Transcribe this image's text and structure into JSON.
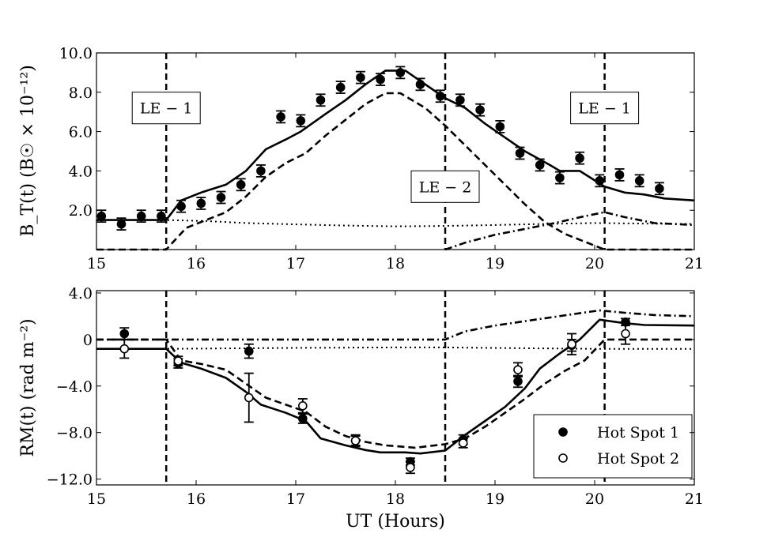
{
  "chart_data": [
    {
      "type": "line",
      "panel": "top",
      "ylabel": "B_T(t) (B☉ × 10⁻¹²)",
      "xlim": [
        15,
        21
      ],
      "ylim": [
        0,
        10
      ],
      "xticks": [
        "15",
        "16",
        "17",
        "18",
        "19",
        "20",
        "21"
      ],
      "yticks": [
        {
          "v": 2,
          "label": "2.0"
        },
        {
          "v": 4,
          "label": "4.0"
        },
        {
          "v": 6,
          "label": "6.0"
        },
        {
          "v": 8,
          "label": "8.0"
        },
        {
          "v": 10,
          "label": "10.0"
        }
      ],
      "vlines": [
        15.7,
        18.5,
        20.1
      ],
      "annotations": [
        {
          "text": "LE − 1",
          "x": 15.7,
          "y": 7.2
        },
        {
          "text": "LE − 2",
          "x": 18.5,
          "y": 3.2
        },
        {
          "text": "LE − 1",
          "x": 20.1,
          "y": 7.2
        }
      ],
      "series": [
        {
          "style": "solid",
          "points": [
            [
              15.0,
              1.5
            ],
            [
              15.7,
              1.5
            ],
            [
              15.85,
              2.5
            ],
            [
              16.05,
              2.9
            ],
            [
              16.3,
              3.3
            ],
            [
              16.5,
              4.0
            ],
            [
              16.7,
              5.1
            ],
            [
              16.9,
              5.6
            ],
            [
              17.05,
              6.0
            ],
            [
              17.3,
              6.9
            ],
            [
              17.5,
              7.6
            ],
            [
              17.7,
              8.4
            ],
            [
              17.9,
              9.1
            ],
            [
              18.1,
              9.1
            ],
            [
              18.3,
              8.4
            ],
            [
              18.5,
              7.7
            ],
            [
              18.7,
              7.2
            ],
            [
              18.9,
              6.4
            ],
            [
              19.1,
              5.7
            ],
            [
              19.3,
              5.0
            ],
            [
              19.55,
              4.3
            ],
            [
              19.65,
              4.0
            ],
            [
              19.85,
              4.0
            ],
            [
              20.1,
              3.2
            ],
            [
              20.3,
              2.9
            ],
            [
              20.5,
              2.8
            ],
            [
              20.7,
              2.6
            ],
            [
              21.0,
              2.5
            ]
          ]
        },
        {
          "style": "dashed",
          "points": [
            [
              15.0,
              0.0
            ],
            [
              15.7,
              0.0
            ],
            [
              15.9,
              1.1
            ],
            [
              16.1,
              1.5
            ],
            [
              16.3,
              1.9
            ],
            [
              16.5,
              2.7
            ],
            [
              16.7,
              3.7
            ],
            [
              16.9,
              4.4
            ],
            [
              17.1,
              4.9
            ],
            [
              17.3,
              5.8
            ],
            [
              17.5,
              6.6
            ],
            [
              17.7,
              7.4
            ],
            [
              17.9,
              7.95
            ],
            [
              18.05,
              7.95
            ],
            [
              18.3,
              7.2
            ],
            [
              18.5,
              6.3
            ],
            [
              18.7,
              5.3
            ],
            [
              18.9,
              4.3
            ],
            [
              19.1,
              3.3
            ],
            [
              19.3,
              2.3
            ],
            [
              19.5,
              1.4
            ],
            [
              19.7,
              0.8
            ],
            [
              19.9,
              0.4
            ],
            [
              20.1,
              0.0
            ],
            [
              21.0,
              0.0
            ]
          ]
        },
        {
          "style": "dotted",
          "points": [
            [
              15.0,
              1.5
            ],
            [
              15.7,
              1.5
            ],
            [
              16.1,
              1.45
            ],
            [
              16.5,
              1.35
            ],
            [
              17.0,
              1.28
            ],
            [
              17.5,
              1.22
            ],
            [
              18.0,
              1.18
            ],
            [
              18.5,
              1.2
            ],
            [
              19.0,
              1.25
            ],
            [
              19.5,
              1.3
            ],
            [
              20.0,
              1.35
            ],
            [
              20.5,
              1.32
            ],
            [
              21.0,
              1.3
            ]
          ]
        },
        {
          "style": "dashdot",
          "points": [
            [
              18.5,
              0.0
            ],
            [
              18.7,
              0.35
            ],
            [
              19.0,
              0.75
            ],
            [
              19.3,
              1.05
            ],
            [
              19.6,
              1.35
            ],
            [
              19.9,
              1.7
            ],
            [
              20.1,
              1.9
            ],
            [
              20.3,
              1.65
            ],
            [
              20.6,
              1.35
            ],
            [
              21.0,
              1.25
            ]
          ]
        }
      ],
      "markers": [
        {
          "name": "Hot Spot 1",
          "fill": "filled",
          "points": [
            {
              "x": 15.05,
              "y": 1.7,
              "err": 0.3
            },
            {
              "x": 15.25,
              "y": 1.3,
              "err": 0.3
            },
            {
              "x": 15.45,
              "y": 1.7,
              "err": 0.3
            },
            {
              "x": 15.65,
              "y": 1.7,
              "err": 0.3
            },
            {
              "x": 15.85,
              "y": 2.2,
              "err": 0.3
            },
            {
              "x": 16.05,
              "y": 2.35,
              "err": 0.3
            },
            {
              "x": 16.25,
              "y": 2.65,
              "err": 0.3
            },
            {
              "x": 16.45,
              "y": 3.3,
              "err": 0.3
            },
            {
              "x": 16.65,
              "y": 4.0,
              "err": 0.3
            },
            {
              "x": 16.85,
              "y": 6.75,
              "err": 0.3
            },
            {
              "x": 17.05,
              "y": 6.55,
              "err": 0.3
            },
            {
              "x": 17.25,
              "y": 7.6,
              "err": 0.3
            },
            {
              "x": 17.45,
              "y": 8.25,
              "err": 0.3
            },
            {
              "x": 17.65,
              "y": 8.75,
              "err": 0.3
            },
            {
              "x": 17.85,
              "y": 8.65,
              "err": 0.3
            },
            {
              "x": 18.05,
              "y": 9.0,
              "err": 0.3
            },
            {
              "x": 18.25,
              "y": 8.4,
              "err": 0.3
            },
            {
              "x": 18.45,
              "y": 7.8,
              "err": 0.3
            },
            {
              "x": 18.65,
              "y": 7.6,
              "err": 0.3
            },
            {
              "x": 18.85,
              "y": 7.1,
              "err": 0.3
            },
            {
              "x": 19.05,
              "y": 6.25,
              "err": 0.3
            },
            {
              "x": 19.25,
              "y": 4.9,
              "err": 0.3
            },
            {
              "x": 19.45,
              "y": 4.3,
              "err": 0.3
            },
            {
              "x": 19.65,
              "y": 3.65,
              "err": 0.3
            },
            {
              "x": 19.85,
              "y": 4.65,
              "err": 0.3
            },
            {
              "x": 20.05,
              "y": 3.5,
              "err": 0.3
            },
            {
              "x": 20.25,
              "y": 3.8,
              "err": 0.3
            },
            {
              "x": 20.45,
              "y": 3.5,
              "err": 0.3
            },
            {
              "x": 20.65,
              "y": 3.1,
              "err": 0.3
            }
          ]
        }
      ]
    },
    {
      "type": "line",
      "panel": "bottom",
      "xlabel": "UT (Hours)",
      "ylabel": "RM(t) (rad m⁻²)",
      "xlim": [
        15,
        21
      ],
      "ylim": [
        -12.5,
        4.2
      ],
      "xticks": [
        "15",
        "16",
        "17",
        "18",
        "19",
        "20",
        "21"
      ],
      "yticks": [
        {
          "v": 4,
          "label": "4.0"
        },
        {
          "v": 0,
          "label": "0"
        },
        {
          "v": -4,
          "label": "−4.0"
        },
        {
          "v": -8,
          "label": "−8.0"
        },
        {
          "v": -12,
          "label": "−12.0"
        }
      ],
      "vlines": [
        15.7,
        18.5,
        20.1
      ],
      "legend": {
        "placement": "lower-right",
        "entries": [
          {
            "label": "Hot Spot 1",
            "marker": "filled"
          },
          {
            "label": "Hot Spot 2",
            "marker": "open"
          }
        ]
      },
      "series": [
        {
          "style": "solid",
          "points": [
            [
              15.0,
              -0.8
            ],
            [
              15.7,
              -0.8
            ],
            [
              15.85,
              -2.0
            ],
            [
              16.05,
              -2.5
            ],
            [
              16.3,
              -3.3
            ],
            [
              16.5,
              -4.5
            ],
            [
              16.65,
              -5.6
            ],
            [
              16.9,
              -6.3
            ],
            [
              17.1,
              -7.0
            ],
            [
              17.25,
              -8.5
            ],
            [
              17.5,
              -9.1
            ],
            [
              17.7,
              -9.5
            ],
            [
              17.85,
              -9.7
            ],
            [
              18.1,
              -9.7
            ],
            [
              18.25,
              -9.8
            ],
            [
              18.5,
              -9.55
            ],
            [
              18.7,
              -8.2
            ],
            [
              18.9,
              -7.0
            ],
            [
              19.1,
              -5.8
            ],
            [
              19.3,
              -4.2
            ],
            [
              19.45,
              -2.5
            ],
            [
              19.65,
              -1.2
            ],
            [
              19.85,
              0.0
            ],
            [
              20.05,
              1.7
            ],
            [
              20.3,
              1.4
            ],
            [
              20.5,
              1.25
            ],
            [
              21.0,
              1.2
            ]
          ]
        },
        {
          "style": "dashed",
          "points": [
            [
              15.0,
              0.0
            ],
            [
              15.7,
              0.0
            ],
            [
              15.85,
              -1.8
            ],
            [
              16.05,
              -2.1
            ],
            [
              16.3,
              -2.6
            ],
            [
              16.5,
              -3.8
            ],
            [
              16.7,
              -5.0
            ],
            [
              16.9,
              -5.6
            ],
            [
              17.1,
              -6.2
            ],
            [
              17.3,
              -7.5
            ],
            [
              17.5,
              -8.3
            ],
            [
              17.7,
              -8.8
            ],
            [
              17.9,
              -9.1
            ],
            [
              18.2,
              -9.3
            ],
            [
              18.5,
              -9.0
            ],
            [
              18.7,
              -8.5
            ],
            [
              18.9,
              -7.5
            ],
            [
              19.1,
              -6.3
            ],
            [
              19.3,
              -5.1
            ],
            [
              19.5,
              -3.8
            ],
            [
              19.7,
              -2.7
            ],
            [
              19.9,
              -1.8
            ],
            [
              20.1,
              0.0
            ],
            [
              21.0,
              0.0
            ]
          ]
        },
        {
          "style": "dotted",
          "points": [
            [
              15.0,
              -0.8
            ],
            [
              15.7,
              -0.8
            ],
            [
              16.0,
              -0.78
            ],
            [
              17.0,
              -0.72
            ],
            [
              18.0,
              -0.68
            ],
            [
              18.5,
              -0.68
            ],
            [
              19.0,
              -0.73
            ],
            [
              20.0,
              -0.8
            ],
            [
              21.0,
              -0.8
            ]
          ]
        },
        {
          "style": "dashdot",
          "points": [
            [
              15.0,
              0.0
            ],
            [
              18.5,
              0.0
            ],
            [
              18.7,
              0.7
            ],
            [
              19.0,
              1.2
            ],
            [
              19.4,
              1.7
            ],
            [
              19.8,
              2.2
            ],
            [
              20.05,
              2.5
            ],
            [
              20.3,
              2.3
            ],
            [
              20.6,
              2.1
            ],
            [
              21.0,
              2.0
            ]
          ]
        }
      ],
      "markers": [
        {
          "name": "Hot Spot 1",
          "fill": "filled",
          "points": [
            {
              "x": 15.28,
              "y": 0.5,
              "err": 0.5
            },
            {
              "x": 15.82,
              "y": -2.05,
              "err": 0.4
            },
            {
              "x": 16.53,
              "y": -1.0,
              "err": 0.6
            },
            {
              "x": 17.07,
              "y": -6.8,
              "err": 0.4
            },
            {
              "x": 17.6,
              "y": -8.7,
              "err": 0.4
            },
            {
              "x": 18.15,
              "y": -10.5,
              "err": 0.3
            },
            {
              "x": 18.68,
              "y": -8.6,
              "err": 0.4
            },
            {
              "x": 19.23,
              "y": -3.6,
              "err": 0.5
            },
            {
              "x": 19.77,
              "y": -0.5,
              "err": 0.5
            },
            {
              "x": 20.31,
              "y": 1.5,
              "err": 0.3
            }
          ]
        },
        {
          "name": "Hot Spot 2",
          "fill": "open",
          "points": [
            {
              "x": 15.28,
              "y": -0.8,
              "err": 0.8
            },
            {
              "x": 15.82,
              "y": -1.85,
              "err": 0.4
            },
            {
              "x": 16.53,
              "y": -5.0,
              "err": 2.1
            },
            {
              "x": 17.07,
              "y": -5.7,
              "err": 0.6
            },
            {
              "x": 17.6,
              "y": -8.7,
              "err": 0.5
            },
            {
              "x": 18.15,
              "y": -11.0,
              "err": 0.5
            },
            {
              "x": 18.68,
              "y": -8.9,
              "err": 0.4
            },
            {
              "x": 19.23,
              "y": -2.6,
              "err": 0.6
            },
            {
              "x": 19.77,
              "y": -0.4,
              "err": 0.9
            },
            {
              "x": 20.31,
              "y": 0.5,
              "err": 0.9
            }
          ]
        }
      ]
    }
  ]
}
